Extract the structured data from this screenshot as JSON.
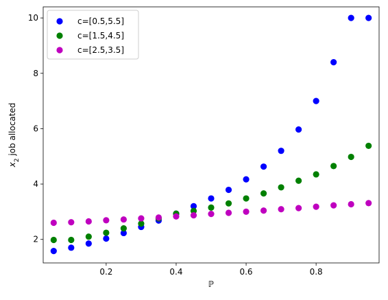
{
  "chart_data": {
    "type": "scatter",
    "title": "",
    "xlabel": "ℙ",
    "ylabel_main": "x",
    "ylabel_sub": "2",
    "ylabel_rest": " job allocated",
    "xlim": [
      0.02,
      0.98
    ],
    "ylim": [
      1.15,
      10.4
    ],
    "xticks": [
      0.2,
      0.4,
      0.6,
      0.8
    ],
    "xtick_labels": [
      "0.2",
      "0.4",
      "0.6",
      "0.8"
    ],
    "yticks": [
      2,
      4,
      6,
      8,
      10
    ],
    "ytick_labels": [
      "2",
      "4",
      "6",
      "8",
      "10"
    ],
    "grid": false,
    "legend": "top-left",
    "x": [
      0.05,
      0.1,
      0.15,
      0.2,
      0.25,
      0.3,
      0.35,
      0.4,
      0.45,
      0.5,
      0.55,
      0.6,
      0.65,
      0.7,
      0.75,
      0.8,
      0.85,
      0.9,
      0.95
    ],
    "series": [
      {
        "name": "c=[0.5,5.5]",
        "color": "#0000ff",
        "values": [
          1.58,
          1.7,
          1.85,
          2.03,
          2.23,
          2.45,
          2.68,
          2.93,
          3.2,
          3.48,
          3.79,
          4.17,
          4.63,
          5.2,
          5.97,
          7.0,
          8.4,
          10.0,
          10.0
        ]
      },
      {
        "name": "c=[1.5,4.5]",
        "color": "#008000",
        "values": [
          1.98,
          1.98,
          2.1,
          2.24,
          2.4,
          2.57,
          2.76,
          2.93,
          3.03,
          3.15,
          3.3,
          3.48,
          3.66,
          3.88,
          4.12,
          4.35,
          4.65,
          4.98,
          5.38
        ]
      },
      {
        "name": "c=[2.5,3.5]",
        "color": "#bf00bf",
        "values": [
          2.6,
          2.62,
          2.65,
          2.69,
          2.72,
          2.76,
          2.79,
          2.83,
          2.87,
          2.92,
          2.96,
          3.0,
          3.04,
          3.09,
          3.13,
          3.18,
          3.23,
          3.27,
          3.31
        ]
      }
    ]
  }
}
